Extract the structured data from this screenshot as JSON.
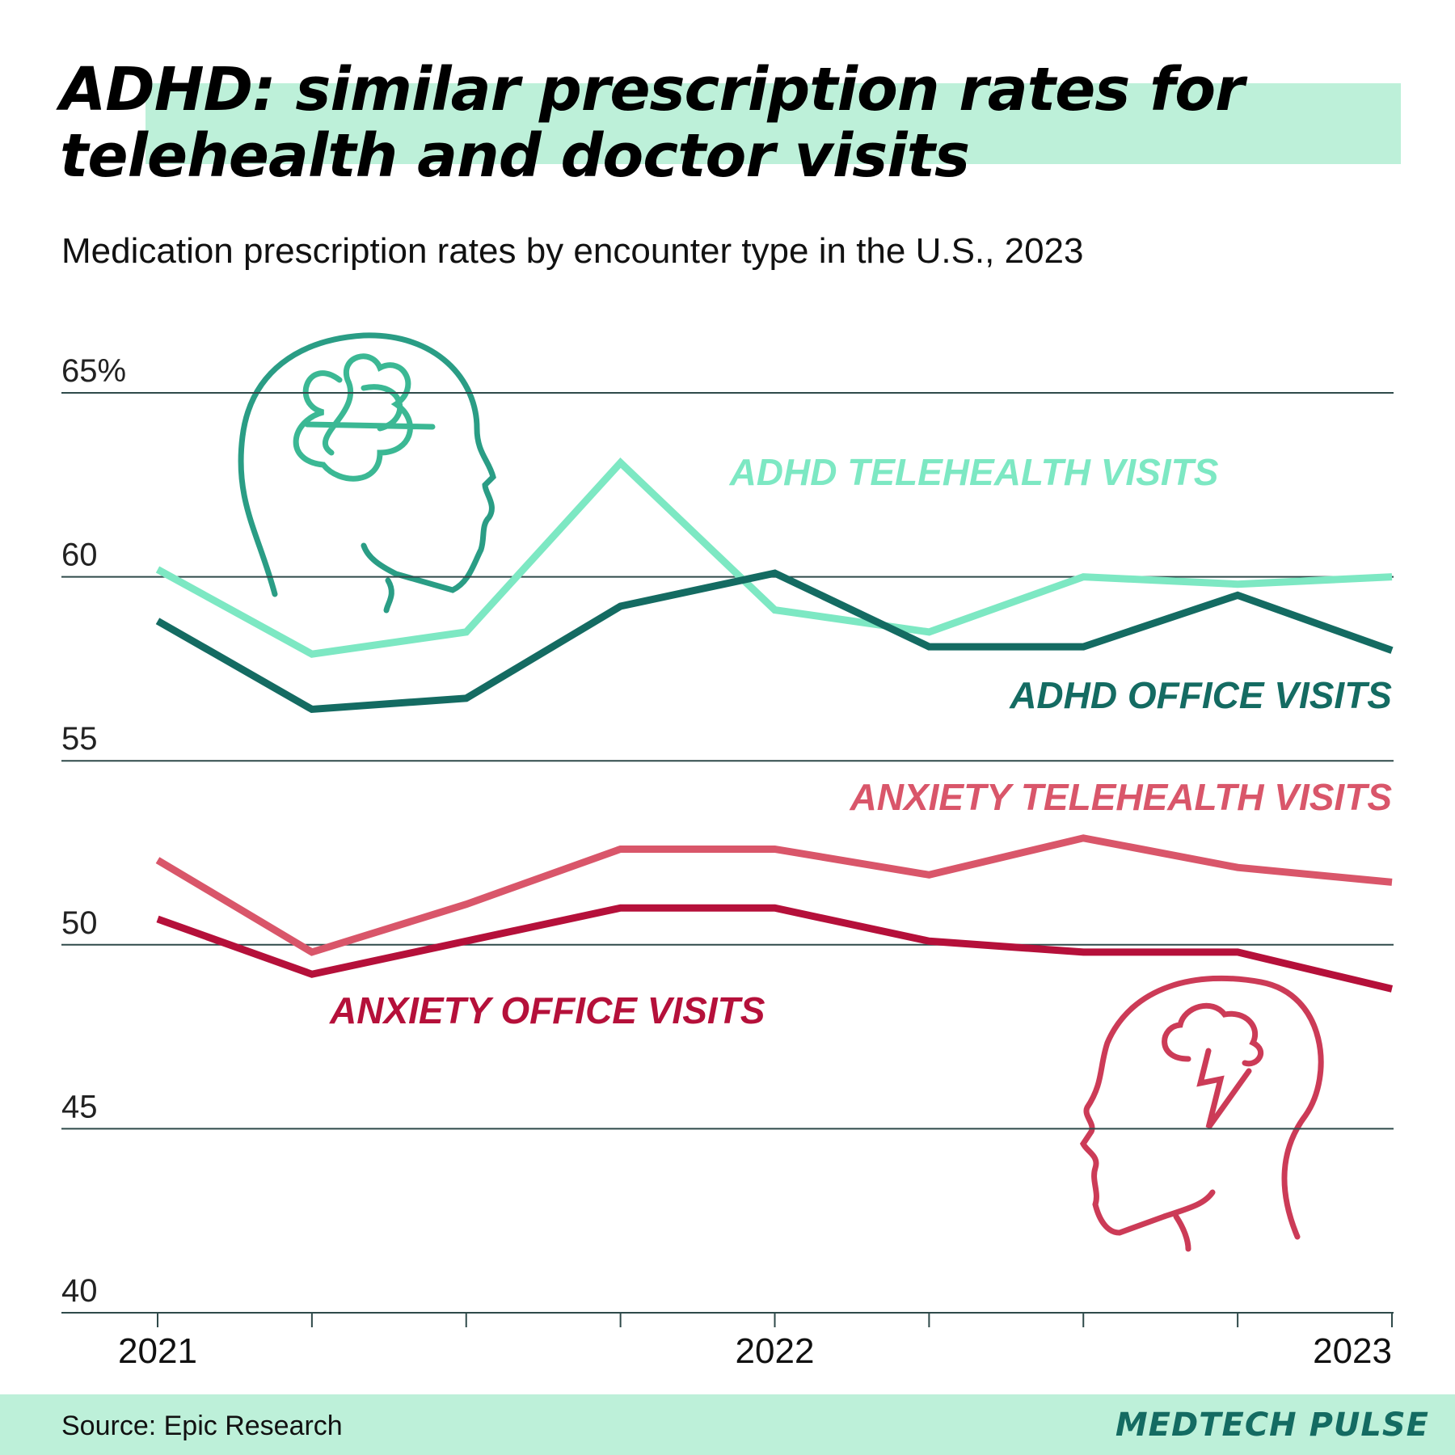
{
  "chart_data": {
    "type": "line",
    "title": "ADHD: similar prescription rates for telehealth and doctor visits",
    "subtitle": "Medication prescription rates by encounter type in the U.S., 2023",
    "categories": [
      "2021",
      null,
      null,
      null,
      "2022",
      null,
      null,
      null,
      "2023"
    ],
    "series": [
      {
        "name": "ADHD TELEHEALTH VISITS",
        "color": "#7de8c3",
        "values": [
          60.2,
          57.9,
          58.5,
          63.1,
          59.1,
          58.5,
          60.0,
          59.8,
          60.0
        ]
      },
      {
        "name": "ADHD OFFICE VISITS",
        "color": "#146b62",
        "values": [
          58.8,
          56.4,
          56.7,
          59.2,
          60.1,
          58.1,
          58.1,
          59.5,
          58.0
        ]
      },
      {
        "name": "ANXIETY TELEHEALTH VISITS",
        "color": "#d9566a",
        "values": [
          52.3,
          49.8,
          51.1,
          52.6,
          52.6,
          51.9,
          52.9,
          52.1,
          51.7
        ]
      },
      {
        "name": "ANXIETY OFFICE VISITS",
        "color": "#b5103a",
        "values": [
          50.7,
          49.2,
          50.1,
          51.0,
          51.0,
          50.1,
          49.8,
          49.8,
          48.8
        ]
      }
    ],
    "ylim": [
      40,
      65
    ],
    "yticks": [
      40,
      45,
      50,
      55,
      60,
      {
        "value": 65,
        "label": "65%"
      }
    ],
    "grid": true,
    "source": "Source: Epic Research",
    "brand": "MEDTECH PULSE"
  }
}
